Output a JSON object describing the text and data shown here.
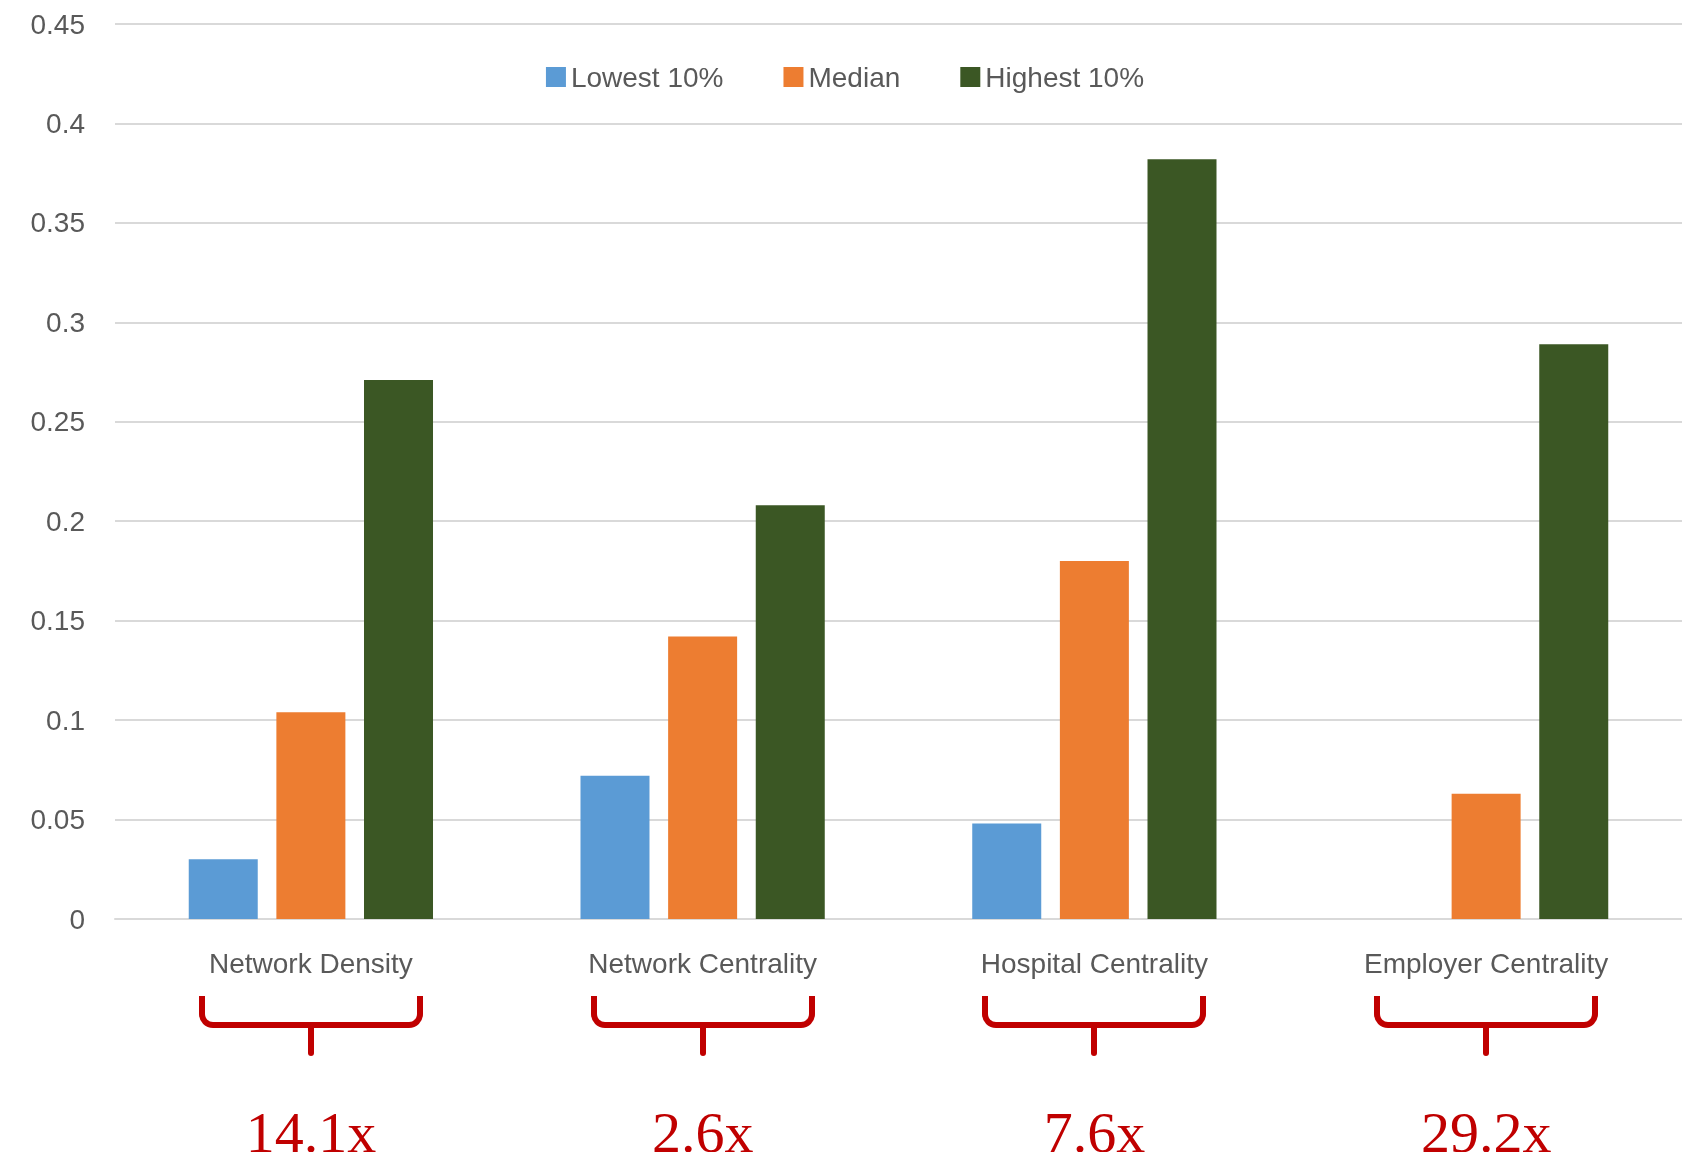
{
  "chart_data": {
    "type": "bar",
    "categories": [
      "Network Density",
      "Network Centrality",
      "Hospital Centrality",
      "Employer Centrality"
    ],
    "series": [
      {
        "name": "Lowest 10%",
        "color": "#5b9bd5",
        "values": [
          0.03,
          0.072,
          0.048,
          0
        ]
      },
      {
        "name": "Median",
        "color": "#ed7d31",
        "values": [
          0.104,
          0.142,
          0.18,
          0.063
        ]
      },
      {
        "name": "Highest 10%",
        "color": "#3b5724",
        "values": [
          0.271,
          0.208,
          0.382,
          0.289
        ]
      }
    ],
    "ylim": [
      0,
      0.45
    ],
    "yticks": [
      0,
      0.05,
      0.1,
      0.15,
      0.2,
      0.25,
      0.3,
      0.35,
      0.4,
      0.45
    ],
    "grid": "y",
    "legend": "top",
    "annotations": [
      "14.1x",
      "2.6x",
      "7.6x",
      "29.2x"
    ]
  }
}
